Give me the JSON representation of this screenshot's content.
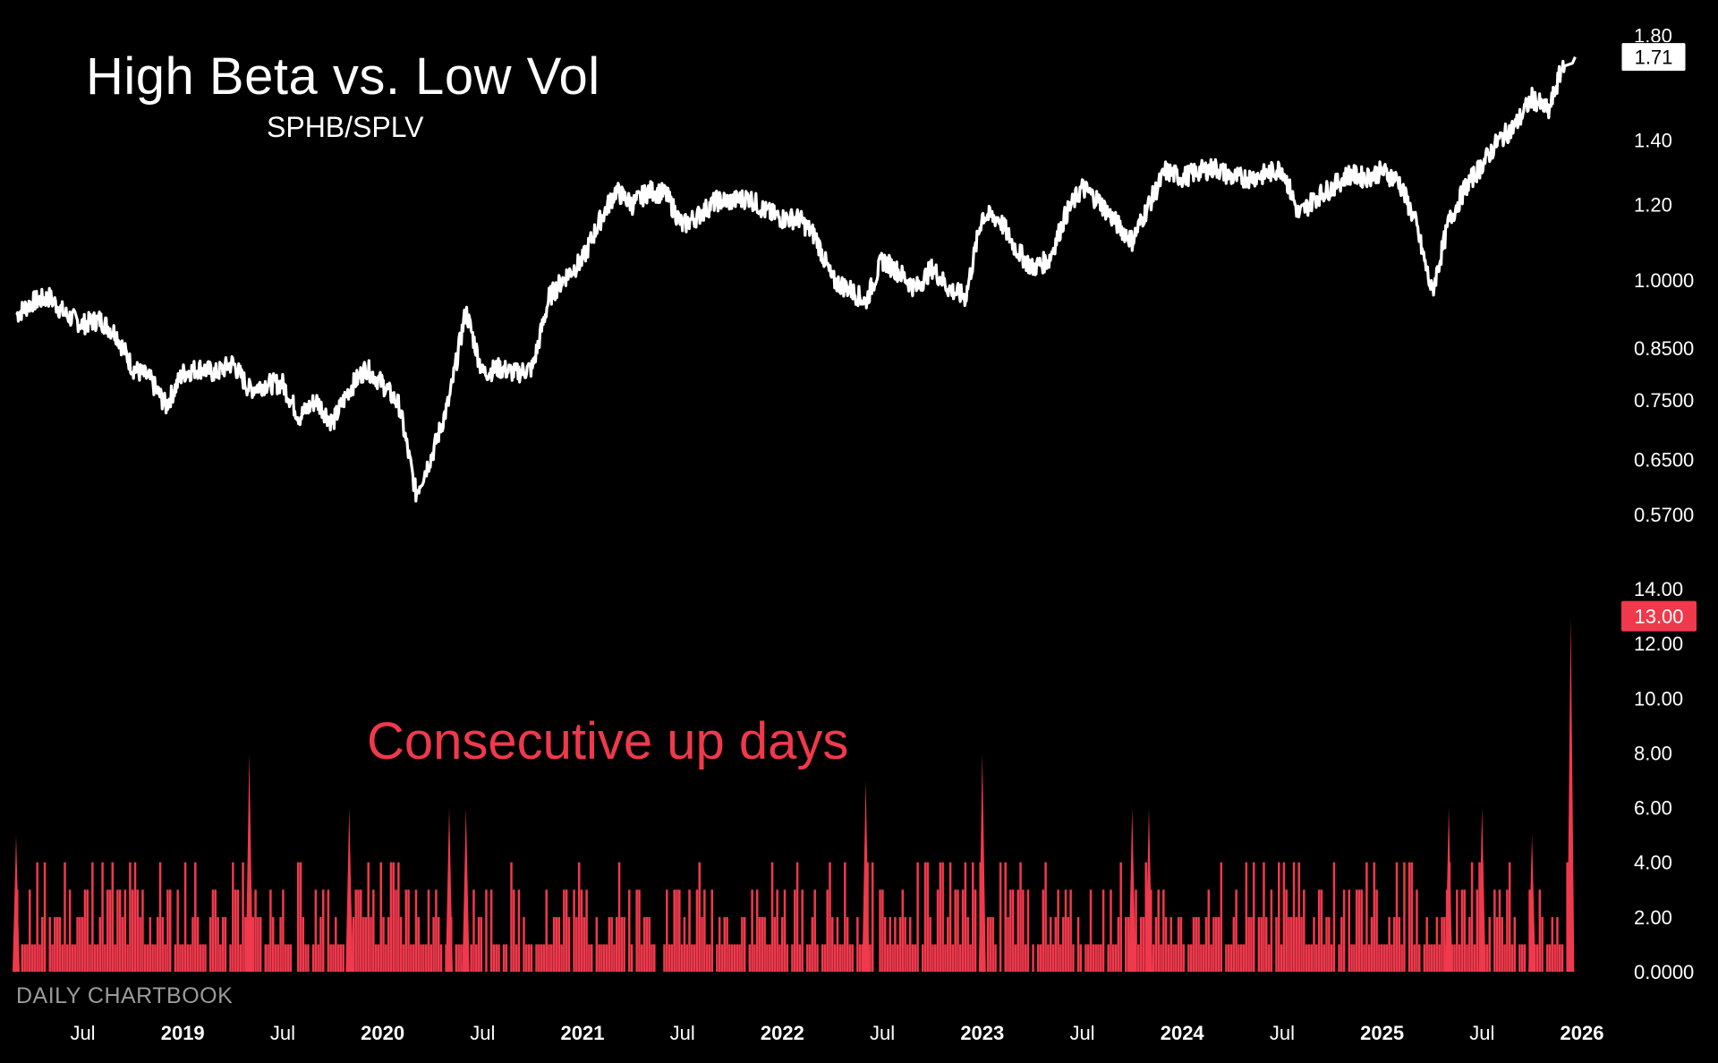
{
  "chart_data": [
    {
      "type": "line",
      "title": "High Beta vs. Low Vol",
      "subtitle": "SPHB/SPLV",
      "scale": "log",
      "ylim": [
        0.54,
        1.83
      ],
      "y_ticks": [
        "1.80",
        "1.40",
        "1.20",
        "1.0000",
        "0.8500",
        "0.7500",
        "0.6500",
        "0.5700"
      ],
      "y_tick_values": [
        1.8,
        1.4,
        1.2,
        1.0,
        0.85,
        0.75,
        0.65,
        0.57
      ],
      "last_value_label": "1.71",
      "last_value": 1.71,
      "series_color": "#ffffff",
      "x_start": "2018-03",
      "x_end": "2025-12",
      "points": [
        [
          "2018-03",
          0.92
        ],
        [
          "2018-04",
          0.95
        ],
        [
          "2018-05",
          0.96
        ],
        [
          "2018-06",
          0.92
        ],
        [
          "2018-07",
          0.9
        ],
        [
          "2018-08",
          0.91
        ],
        [
          "2018-09",
          0.88
        ],
        [
          "2018-10",
          0.81
        ],
        [
          "2018-11",
          0.79
        ],
        [
          "2018-12",
          0.74
        ],
        [
          "2019-01",
          0.8
        ],
        [
          "2019-02",
          0.81
        ],
        [
          "2019-03",
          0.8
        ],
        [
          "2019-04",
          0.82
        ],
        [
          "2019-05",
          0.77
        ],
        [
          "2019-06",
          0.78
        ],
        [
          "2019-07",
          0.78
        ],
        [
          "2019-08",
          0.72
        ],
        [
          "2019-09",
          0.75
        ],
        [
          "2019-10",
          0.71
        ],
        [
          "2019-11",
          0.77
        ],
        [
          "2019-12",
          0.81
        ],
        [
          "2020-01",
          0.78
        ],
        [
          "2020-02",
          0.74
        ],
        [
          "2020-03",
          0.6
        ],
        [
          "2020-04",
          0.66
        ],
        [
          "2020-05",
          0.75
        ],
        [
          "2020-06",
          0.93
        ],
        [
          "2020-07",
          0.8
        ],
        [
          "2020-08",
          0.81
        ],
        [
          "2020-09",
          0.8
        ],
        [
          "2020-10",
          0.81
        ],
        [
          "2020-11",
          0.96
        ],
        [
          "2020-12",
          1.01
        ],
        [
          "2021-01",
          1.05
        ],
        [
          "2021-02",
          1.15
        ],
        [
          "2021-03",
          1.24
        ],
        [
          "2021-04",
          1.2
        ],
        [
          "2021-05",
          1.24
        ],
        [
          "2021-06",
          1.23
        ],
        [
          "2021-07",
          1.14
        ],
        [
          "2021-08",
          1.17
        ],
        [
          "2021-09",
          1.21
        ],
        [
          "2021-10",
          1.21
        ],
        [
          "2021-11",
          1.22
        ],
        [
          "2021-12",
          1.18
        ],
        [
          "2022-01",
          1.16
        ],
        [
          "2022-02",
          1.16
        ],
        [
          "2022-03",
          1.11
        ],
        [
          "2022-04",
          1.0
        ],
        [
          "2022-05",
          0.98
        ],
        [
          "2022-06",
          0.95
        ],
        [
          "2022-07",
          1.05
        ],
        [
          "2022-08",
          1.02
        ],
        [
          "2022-09",
          0.98
        ],
        [
          "2022-10",
          1.03
        ],
        [
          "2022-11",
          0.98
        ],
        [
          "2022-12",
          0.96
        ],
        [
          "2023-01",
          1.17
        ],
        [
          "2023-02",
          1.16
        ],
        [
          "2023-03",
          1.08
        ],
        [
          "2023-04",
          1.03
        ],
        [
          "2023-05",
          1.05
        ],
        [
          "2023-06",
          1.17
        ],
        [
          "2023-07",
          1.25
        ],
        [
          "2023-08",
          1.21
        ],
        [
          "2023-09",
          1.15
        ],
        [
          "2023-10",
          1.1
        ],
        [
          "2023-11",
          1.2
        ],
        [
          "2023-12",
          1.3
        ],
        [
          "2024-01",
          1.28
        ],
        [
          "2024-02",
          1.3
        ],
        [
          "2024-03",
          1.31
        ],
        [
          "2024-04",
          1.28
        ],
        [
          "2024-05",
          1.28
        ],
        [
          "2024-06",
          1.29
        ],
        [
          "2024-07",
          1.31
        ],
        [
          "2024-08",
          1.17
        ],
        [
          "2024-09",
          1.22
        ],
        [
          "2024-10",
          1.25
        ],
        [
          "2024-11",
          1.29
        ],
        [
          "2024-12",
          1.28
        ],
        [
          "2025-01",
          1.3
        ],
        [
          "2025-02",
          1.27
        ],
        [
          "2025-03",
          1.15
        ],
        [
          "2025-04",
          0.97
        ],
        [
          "2025-05",
          1.15
        ],
        [
          "2025-06",
          1.25
        ],
        [
          "2025-07",
          1.32
        ],
        [
          "2025-08",
          1.4
        ],
        [
          "2025-09",
          1.45
        ],
        [
          "2025-10",
          1.55
        ],
        [
          "2025-11",
          1.5
        ],
        [
          "2025-12",
          1.71
        ]
      ]
    },
    {
      "type": "bar",
      "title": "Consecutive up days",
      "ylim": [
        0,
        14
      ],
      "y_ticks": [
        "14.00",
        "12.00",
        "10.00",
        "8.00",
        "6.00",
        "4.00",
        "2.00",
        "0.0000"
      ],
      "y_tick_values": [
        14,
        12,
        10,
        8,
        6,
        4,
        2,
        0
      ],
      "last_value_label": "13.00",
      "last_value": 13,
      "series_color": "#f0394c",
      "notable_spikes": [
        [
          "2018-03",
          5
        ],
        [
          "2019-05",
          8
        ],
        [
          "2019-11",
          6
        ],
        [
          "2020-05",
          6
        ],
        [
          "2020-06",
          6
        ],
        [
          "2022-06",
          7
        ],
        [
          "2023-01",
          8
        ],
        [
          "2023-10",
          6
        ],
        [
          "2023-11",
          6
        ],
        [
          "2025-05",
          6
        ],
        [
          "2025-07",
          6
        ],
        [
          "2025-10",
          5
        ],
        [
          "2025-12",
          13
        ]
      ]
    }
  ],
  "x_axis": {
    "labels": [
      {
        "text": "Jul",
        "date": "2018-07",
        "bold": false
      },
      {
        "text": "2019",
        "date": "2019-01",
        "bold": true
      },
      {
        "text": "Jul",
        "date": "2019-07",
        "bold": false
      },
      {
        "text": "2020",
        "date": "2020-01",
        "bold": true
      },
      {
        "text": "Jul",
        "date": "2020-07",
        "bold": false
      },
      {
        "text": "2021",
        "date": "2021-01",
        "bold": true
      },
      {
        "text": "Jul",
        "date": "2021-07",
        "bold": false
      },
      {
        "text": "2022",
        "date": "2022-01",
        "bold": true
      },
      {
        "text": "Jul",
        "date": "2022-07",
        "bold": false
      },
      {
        "text": "2023",
        "date": "2023-01",
        "bold": true
      },
      {
        "text": "Jul",
        "date": "2023-07",
        "bold": false
      },
      {
        "text": "2024",
        "date": "2024-01",
        "bold": true
      },
      {
        "text": "Jul",
        "date": "2024-07",
        "bold": false
      },
      {
        "text": "2025",
        "date": "2025-01",
        "bold": true
      },
      {
        "text": "Jul",
        "date": "2025-07",
        "bold": false
      },
      {
        "text": "2026",
        "date": "2026-01",
        "bold": true
      }
    ]
  },
  "watermark": "DAILY CHARTBOOK",
  "colors": {
    "background": "#000000",
    "line": "#ffffff",
    "bars": "#f0394c",
    "badge_red": "#f0394c"
  }
}
